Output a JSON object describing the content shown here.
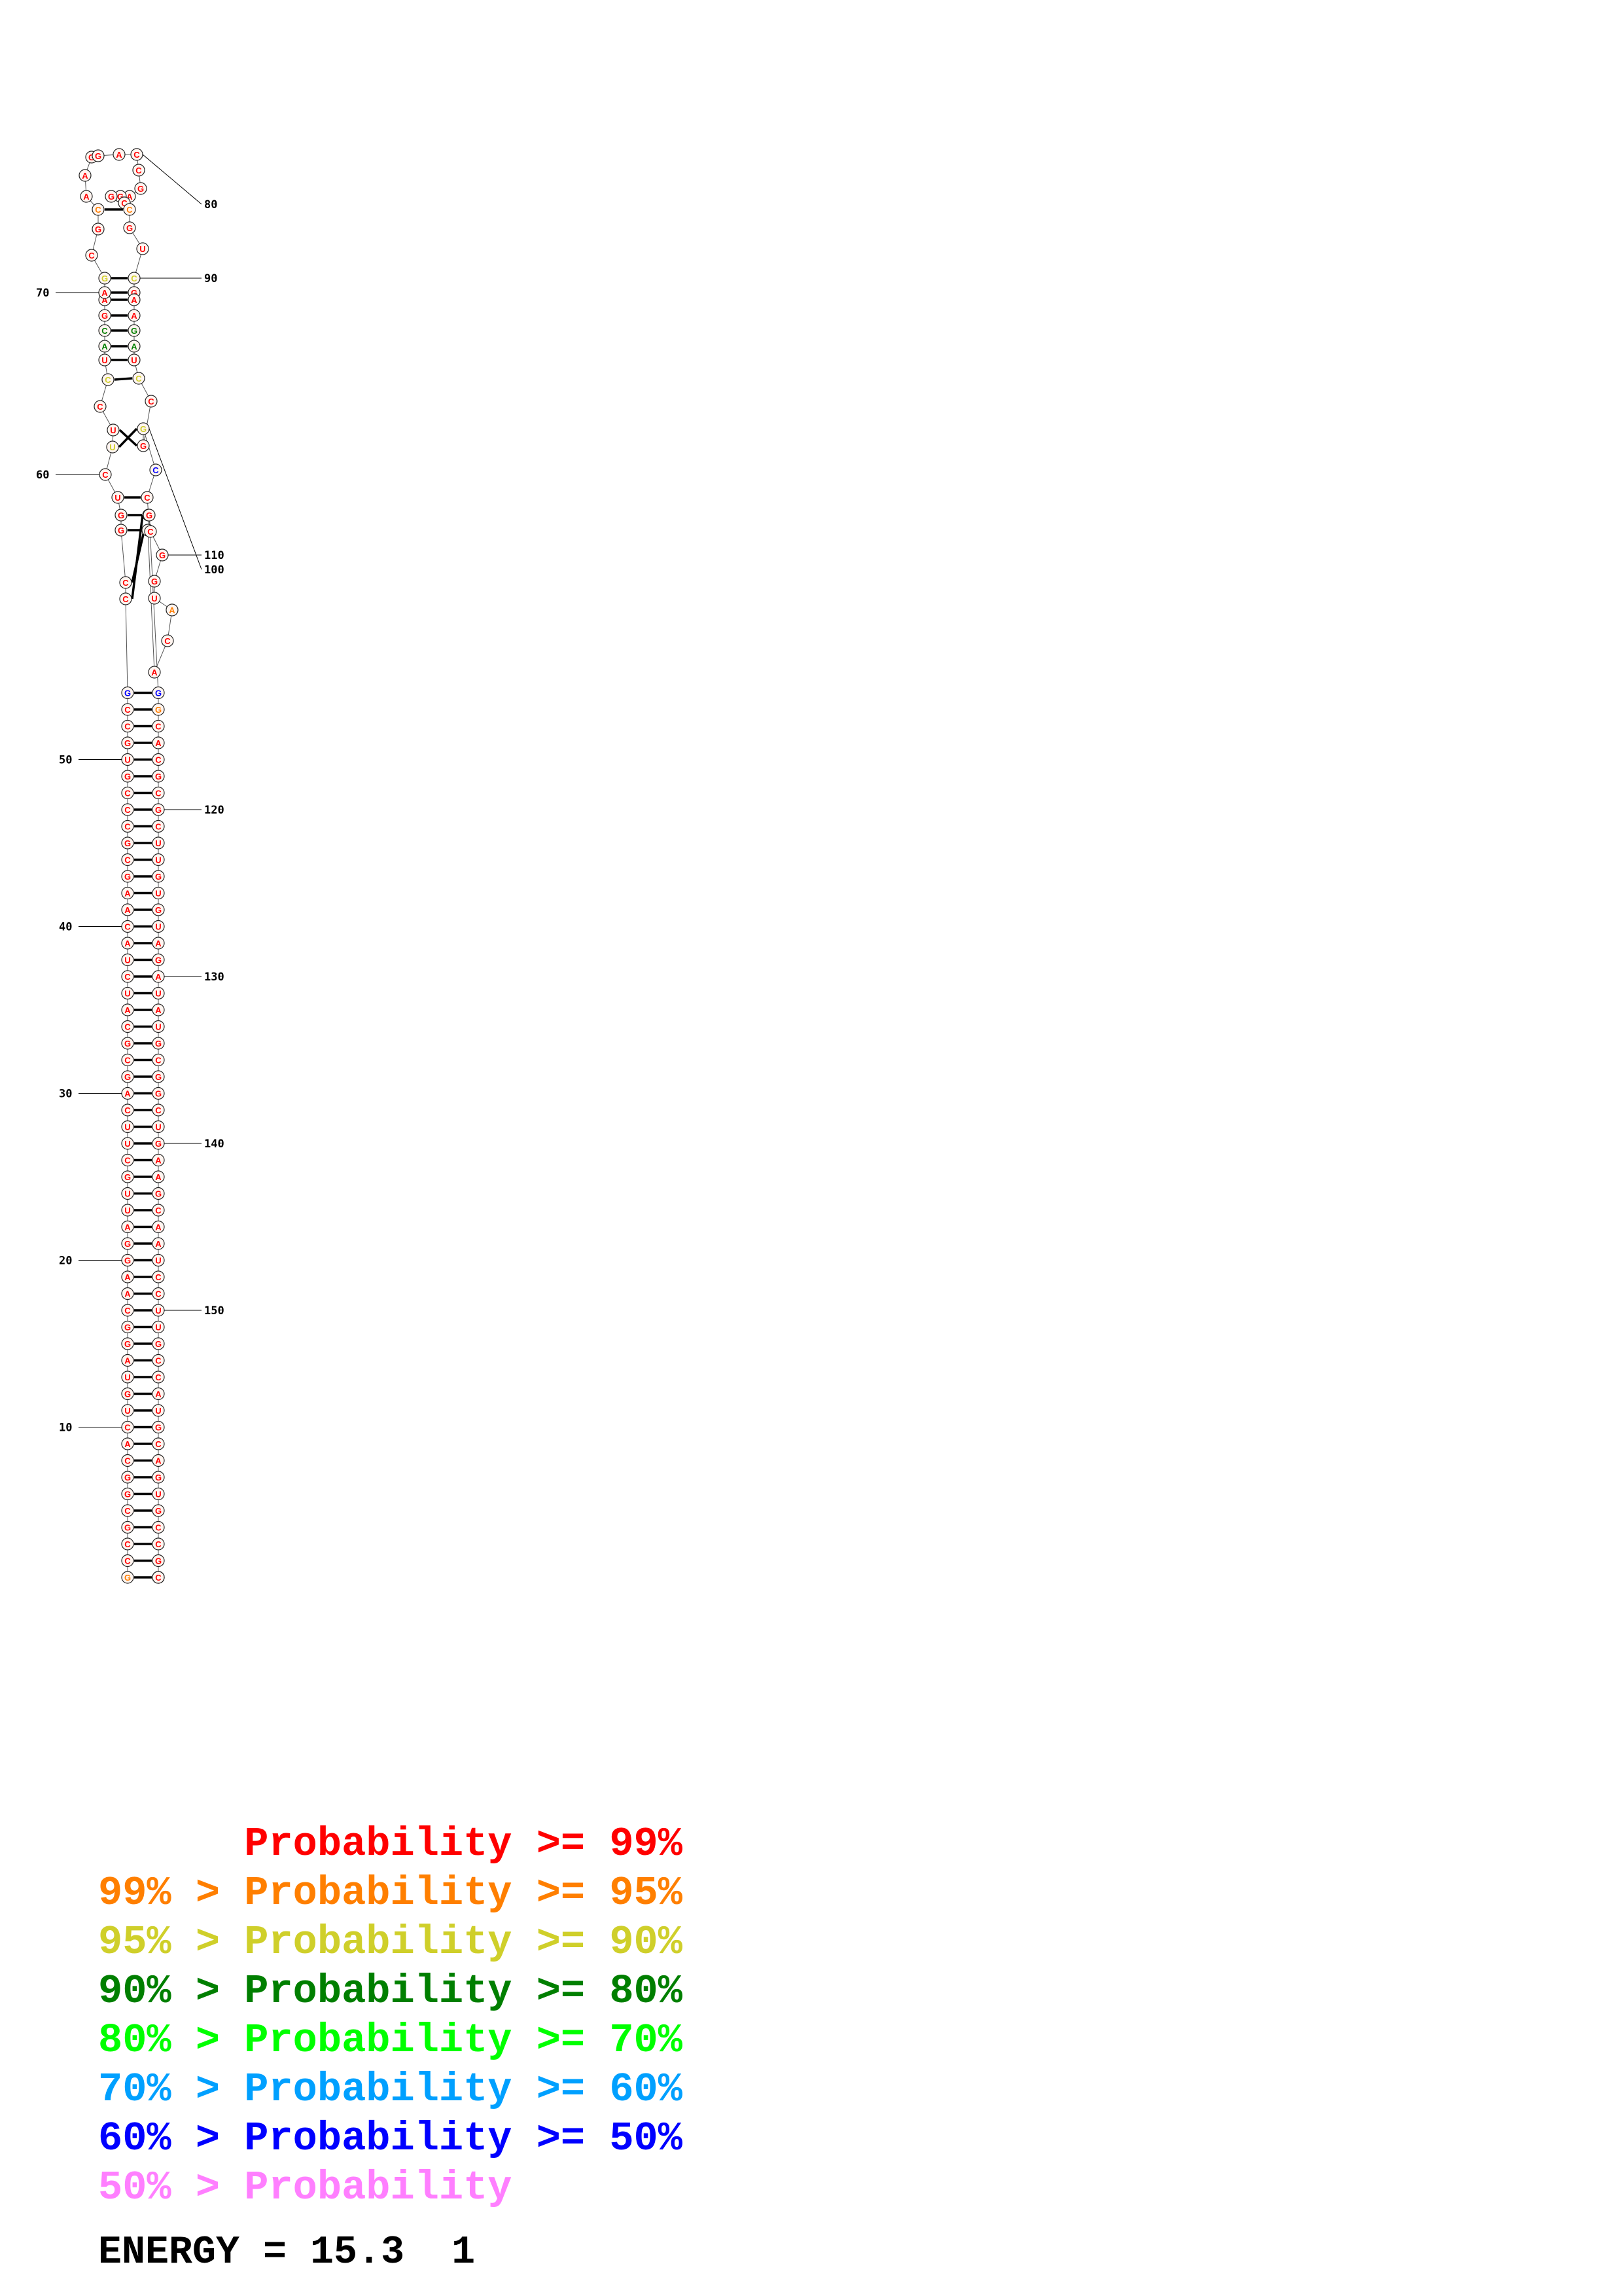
{
  "legend": [
    {
      "prefix": "",
      "label": "Probability >= 99%",
      "color": "#ff0000"
    },
    {
      "prefix": "99% > ",
      "label": "Probability >= 95%",
      "color": "#ff7f00"
    },
    {
      "prefix": "95% > ",
      "label": "Probability >= 90%",
      "color": "#cfcf2a"
    },
    {
      "prefix": "90% > ",
      "label": "Probability >= 80%",
      "color": "#007f00"
    },
    {
      "prefix": "80% > ",
      "label": "Probability >= 70%",
      "color": "#00ff00"
    },
    {
      "prefix": "70% > ",
      "label": "Probability >= 60%",
      "color": "#00a0ff"
    },
    {
      "prefix": "60% > ",
      "label": "Probability >= 50%",
      "color": "#0000ff"
    },
    {
      "prefix": "50% > ",
      "label": "Probability",
      "color": "#ff7fff"
    }
  ],
  "energy": {
    "label": "ENERGY = 15.3  1"
  },
  "structure": {
    "sequence": "GCCGCGGCACUGUAGGCAAGGAUUGCUUCAGCGCAUCUACAAGCGCCCGUGCCGCCGGUCUUCCUACGAAGCGCAAGGACCGAGGCCGUCGAAGAUCCGGCCUGACAUGGCGGGCACGCGCUUGUGUAGAUAUGCGGCUGAAGCAAUCCUUGCCAUGCAGUGCCGCGGC",
    "position_labels": [
      "10",
      "20",
      "30",
      "40",
      "50",
      "60",
      "70",
      "80",
      "90",
      "100",
      "110",
      "120",
      "130",
      "140",
      "150"
    ]
  }
}
